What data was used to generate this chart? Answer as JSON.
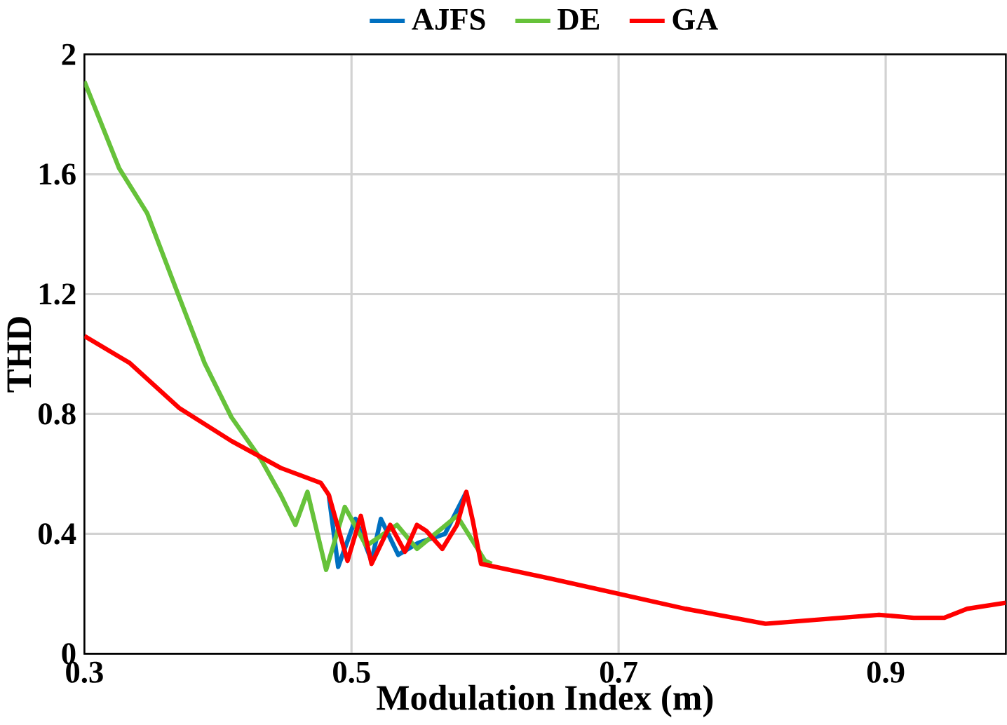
{
  "chart_data": {
    "type": "line",
    "xlabel": "Modulation Index (m)",
    "ylabel": "THD",
    "xlim": [
      0.3,
      0.99
    ],
    "ylim": [
      0,
      2
    ],
    "xticks": [
      0.3,
      0.5,
      0.7,
      0.9
    ],
    "yticks": [
      0,
      0.4,
      0.8,
      1.2,
      1.6,
      2
    ],
    "grid": true,
    "legend": "top",
    "line_style": "solid",
    "series": [
      {
        "name": "AJFS",
        "color": "#0070c0",
        "x": [
          0.483,
          0.49,
          0.503,
          0.515,
          0.522,
          0.535,
          0.55,
          0.57,
          0.586
        ],
        "values": [
          0.53,
          0.29,
          0.45,
          0.31,
          0.45,
          0.33,
          0.37,
          0.4,
          0.54
        ]
      },
      {
        "name": "DE",
        "color": "#66c23a",
        "x": [
          0.3,
          0.326,
          0.347,
          0.371,
          0.39,
          0.41,
          0.432,
          0.447,
          0.458,
          0.467,
          0.481,
          0.495,
          0.511,
          0.534,
          0.549,
          0.579,
          0.6,
          0.605
        ],
        "values": [
          1.91,
          1.62,
          1.47,
          1.19,
          0.97,
          0.79,
          0.65,
          0.53,
          0.43,
          0.54,
          0.28,
          0.49,
          0.36,
          0.43,
          0.35,
          0.46,
          0.31,
          0.3
        ]
      },
      {
        "name": "GA",
        "color": "#ff0000",
        "x": [
          0.3,
          0.334,
          0.371,
          0.41,
          0.447,
          0.477,
          0.483,
          0.497,
          0.507,
          0.515,
          0.529,
          0.54,
          0.549,
          0.556,
          0.568,
          0.579,
          0.586,
          0.591,
          0.597,
          0.65,
          0.7,
          0.75,
          0.81,
          0.895,
          0.921,
          0.944,
          0.961,
          0.99
        ],
        "values": [
          1.06,
          0.97,
          0.82,
          0.71,
          0.62,
          0.57,
          0.53,
          0.31,
          0.46,
          0.3,
          0.43,
          0.34,
          0.43,
          0.41,
          0.35,
          0.43,
          0.54,
          0.44,
          0.3,
          0.25,
          0.2,
          0.15,
          0.1,
          0.13,
          0.12,
          0.12,
          0.15,
          0.17
        ]
      }
    ]
  }
}
